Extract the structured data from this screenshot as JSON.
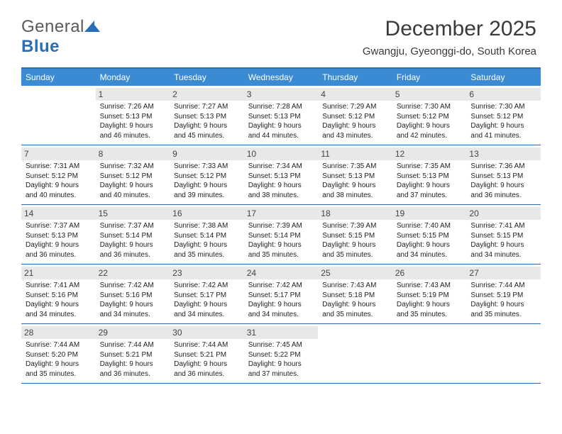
{
  "logo": {
    "textA": "General",
    "textB": "Blue",
    "iconColor": "#2a6eb8"
  },
  "title": "December 2025",
  "location": "Gwangju, Gyeonggi-do, South Korea",
  "dayNames": [
    "Sunday",
    "Monday",
    "Tuesday",
    "Wednesday",
    "Thursday",
    "Friday",
    "Saturday"
  ],
  "colors": {
    "headerBg": "#3b8bd4",
    "borderBlue": "#2a6eb8",
    "dayNumBg": "#e8e8e8",
    "textGray": "#3a3a3a"
  },
  "weeks": [
    [
      {
        "n": "",
        "empty": true
      },
      {
        "n": "1",
        "sr": "7:26 AM",
        "ss": "5:13 PM",
        "dl": "9 hours and 46 minutes."
      },
      {
        "n": "2",
        "sr": "7:27 AM",
        "ss": "5:13 PM",
        "dl": "9 hours and 45 minutes."
      },
      {
        "n": "3",
        "sr": "7:28 AM",
        "ss": "5:13 PM",
        "dl": "9 hours and 44 minutes."
      },
      {
        "n": "4",
        "sr": "7:29 AM",
        "ss": "5:12 PM",
        "dl": "9 hours and 43 minutes."
      },
      {
        "n": "5",
        "sr": "7:30 AM",
        "ss": "5:12 PM",
        "dl": "9 hours and 42 minutes."
      },
      {
        "n": "6",
        "sr": "7:30 AM",
        "ss": "5:12 PM",
        "dl": "9 hours and 41 minutes."
      }
    ],
    [
      {
        "n": "7",
        "sr": "7:31 AM",
        "ss": "5:12 PM",
        "dl": "9 hours and 40 minutes."
      },
      {
        "n": "8",
        "sr": "7:32 AM",
        "ss": "5:12 PM",
        "dl": "9 hours and 40 minutes."
      },
      {
        "n": "9",
        "sr": "7:33 AM",
        "ss": "5:12 PM",
        "dl": "9 hours and 39 minutes."
      },
      {
        "n": "10",
        "sr": "7:34 AM",
        "ss": "5:13 PM",
        "dl": "9 hours and 38 minutes."
      },
      {
        "n": "11",
        "sr": "7:35 AM",
        "ss": "5:13 PM",
        "dl": "9 hours and 38 minutes."
      },
      {
        "n": "12",
        "sr": "7:35 AM",
        "ss": "5:13 PM",
        "dl": "9 hours and 37 minutes."
      },
      {
        "n": "13",
        "sr": "7:36 AM",
        "ss": "5:13 PM",
        "dl": "9 hours and 36 minutes."
      }
    ],
    [
      {
        "n": "14",
        "sr": "7:37 AM",
        "ss": "5:13 PM",
        "dl": "9 hours and 36 minutes."
      },
      {
        "n": "15",
        "sr": "7:37 AM",
        "ss": "5:14 PM",
        "dl": "9 hours and 36 minutes."
      },
      {
        "n": "16",
        "sr": "7:38 AM",
        "ss": "5:14 PM",
        "dl": "9 hours and 35 minutes."
      },
      {
        "n": "17",
        "sr": "7:39 AM",
        "ss": "5:14 PM",
        "dl": "9 hours and 35 minutes."
      },
      {
        "n": "18",
        "sr": "7:39 AM",
        "ss": "5:15 PM",
        "dl": "9 hours and 35 minutes."
      },
      {
        "n": "19",
        "sr": "7:40 AM",
        "ss": "5:15 PM",
        "dl": "9 hours and 34 minutes."
      },
      {
        "n": "20",
        "sr": "7:41 AM",
        "ss": "5:15 PM",
        "dl": "9 hours and 34 minutes."
      }
    ],
    [
      {
        "n": "21",
        "sr": "7:41 AM",
        "ss": "5:16 PM",
        "dl": "9 hours and 34 minutes."
      },
      {
        "n": "22",
        "sr": "7:42 AM",
        "ss": "5:16 PM",
        "dl": "9 hours and 34 minutes."
      },
      {
        "n": "23",
        "sr": "7:42 AM",
        "ss": "5:17 PM",
        "dl": "9 hours and 34 minutes."
      },
      {
        "n": "24",
        "sr": "7:42 AM",
        "ss": "5:17 PM",
        "dl": "9 hours and 34 minutes."
      },
      {
        "n": "25",
        "sr": "7:43 AM",
        "ss": "5:18 PM",
        "dl": "9 hours and 35 minutes."
      },
      {
        "n": "26",
        "sr": "7:43 AM",
        "ss": "5:19 PM",
        "dl": "9 hours and 35 minutes."
      },
      {
        "n": "27",
        "sr": "7:44 AM",
        "ss": "5:19 PM",
        "dl": "9 hours and 35 minutes."
      }
    ],
    [
      {
        "n": "28",
        "sr": "7:44 AM",
        "ss": "5:20 PM",
        "dl": "9 hours and 35 minutes."
      },
      {
        "n": "29",
        "sr": "7:44 AM",
        "ss": "5:21 PM",
        "dl": "9 hours and 36 minutes."
      },
      {
        "n": "30",
        "sr": "7:44 AM",
        "ss": "5:21 PM",
        "dl": "9 hours and 36 minutes."
      },
      {
        "n": "31",
        "sr": "7:45 AM",
        "ss": "5:22 PM",
        "dl": "9 hours and 37 minutes."
      },
      {
        "n": "",
        "empty": true
      },
      {
        "n": "",
        "empty": true
      },
      {
        "n": "",
        "empty": true
      }
    ]
  ],
  "labels": {
    "sunrise": "Sunrise:",
    "sunset": "Sunset:",
    "daylight": "Daylight:"
  }
}
